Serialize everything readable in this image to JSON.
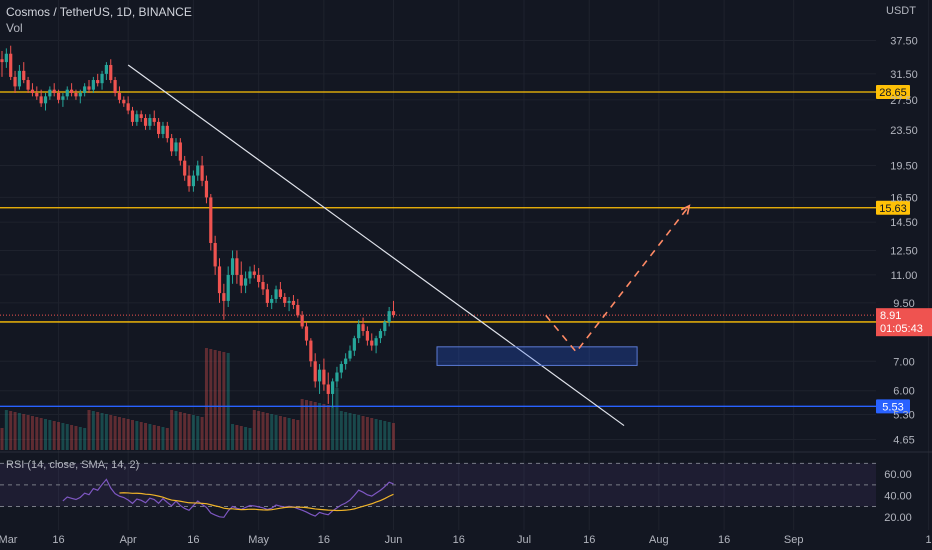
{
  "header": {
    "title": "Cosmos / TetherUS, 1D, BINANCE",
    "volume_label": "Vol",
    "currency": "USDT"
  },
  "rsi": {
    "label": "RSI (14, close, SMA, 14, 2)",
    "ticks": [
      "60.00",
      "40.00",
      "20.00"
    ]
  },
  "colors": {
    "background": "#131722",
    "up": "#26a69a",
    "down": "#ef5350",
    "level": "#ffc107",
    "support": "#2962ff",
    "rsi_line": "#7e57c2",
    "rsi_ma": "#f0b429"
  },
  "chart_data": {
    "type": "candlestick",
    "symbol": "Cosmos / TetherUS",
    "timeframe": "1D",
    "exchange": "BINANCE",
    "y_scale": "log",
    "ylim": [
      4.4,
      44
    ],
    "price_ticks": [
      "37.50",
      "31.50",
      "27.50",
      "23.50",
      "19.50",
      "16.50",
      "14.50",
      "12.50",
      "11.00",
      "9.50",
      "7.00",
      "6.00",
      "5.30",
      "4.65"
    ],
    "x_ticks": [
      "Mar",
      "16",
      "Apr",
      "16",
      "May",
      "16",
      "Jun",
      "16",
      "Jul",
      "16",
      "Aug",
      "16",
      "Sep",
      "1"
    ],
    "horizontal_levels": [
      {
        "value": 28.65,
        "label": "28.65",
        "color": "#ffc107"
      },
      {
        "value": 15.63,
        "label": "15.63",
        "color": "#ffc107"
      },
      {
        "value": 8.6,
        "label": "8.60",
        "color": "#ffc107"
      },
      {
        "value": 5.53,
        "label": "5.53",
        "color": "#2962ff"
      }
    ],
    "last_price": {
      "value": 8.91,
      "label": "8.91",
      "countdown": "01:05:43"
    },
    "drawings": {
      "trendline": {
        "from": [
          "Apr",
          33.0
        ],
        "to": [
          "Jul 24",
          5.0
        ]
      },
      "demand_zone": {
        "from": [
          "Jun 11",
          6.85
        ],
        "to": [
          "Jul 27",
          7.55
        ]
      },
      "projection": [
        [
          8.9,
          "Jul 6"
        ],
        [
          7.35,
          "Jul 13"
        ],
        [
          15.8,
          "Aug 8"
        ]
      ]
    },
    "candles": [
      [
        34.0,
        35.5,
        31.0,
        33.5
      ],
      [
        33.5,
        36.0,
        32.5,
        35.0
      ],
      [
        35.0,
        36.5,
        30.5,
        31.0
      ],
      [
        31.0,
        32.0,
        28.5,
        29.5
      ],
      [
        29.5,
        33.0,
        29.0,
        32.0
      ],
      [
        32.0,
        33.5,
        30.0,
        30.5
      ],
      [
        30.5,
        31.0,
        28.5,
        29.0
      ],
      [
        29.0,
        30.0,
        28.0,
        28.5
      ],
      [
        28.5,
        29.5,
        27.5,
        28.0
      ],
      [
        28.0,
        29.0,
        26.5,
        27.0
      ],
      [
        27.0,
        28.5,
        26.0,
        28.0
      ],
      [
        28.0,
        29.5,
        27.5,
        29.0
      ],
      [
        29.0,
        30.0,
        28.0,
        28.5
      ],
      [
        28.5,
        29.0,
        27.0,
        27.5
      ],
      [
        27.5,
        28.5,
        26.5,
        28.0
      ],
      [
        28.0,
        29.5,
        27.5,
        29.0
      ],
      [
        29.0,
        30.0,
        28.0,
        28.5
      ],
      [
        28.5,
        29.0,
        27.5,
        28.0
      ],
      [
        28.0,
        29.0,
        27.0,
        28.5
      ],
      [
        28.5,
        30.0,
        28.0,
        29.5
      ],
      [
        29.5,
        30.5,
        28.5,
        29.0
      ],
      [
        29.0,
        31.0,
        28.5,
        30.5
      ],
      [
        30.5,
        31.5,
        29.5,
        30.0
      ],
      [
        30.0,
        32.0,
        29.0,
        31.5
      ],
      [
        31.5,
        33.5,
        30.5,
        33.0
      ],
      [
        33.0,
        34.0,
        30.0,
        30.5
      ],
      [
        30.5,
        31.0,
        28.0,
        28.5
      ],
      [
        28.5,
        29.5,
        27.0,
        27.5
      ],
      [
        27.5,
        28.0,
        26.5,
        27.0
      ],
      [
        27.0,
        28.0,
        25.5,
        26.0
      ],
      [
        26.0,
        26.5,
        24.0,
        24.5
      ],
      [
        24.5,
        26.0,
        24.0,
        25.5
      ],
      [
        25.5,
        26.0,
        24.5,
        25.0
      ],
      [
        25.0,
        25.5,
        23.5,
        24.0
      ],
      [
        24.0,
        25.5,
        23.5,
        25.0
      ],
      [
        25.0,
        26.0,
        24.0,
        24.5
      ],
      [
        24.5,
        25.0,
        22.5,
        23.0
      ],
      [
        23.0,
        24.5,
        22.5,
        24.0
      ],
      [
        24.0,
        24.5,
        22.0,
        22.5
      ],
      [
        22.5,
        23.0,
        20.5,
        21.0
      ],
      [
        21.0,
        22.5,
        20.5,
        22.0
      ],
      [
        22.0,
        22.5,
        19.5,
        20.0
      ],
      [
        20.0,
        20.5,
        18.0,
        18.5
      ],
      [
        18.5,
        19.5,
        17.0,
        17.5
      ],
      [
        17.5,
        19.0,
        17.0,
        18.5
      ],
      [
        18.5,
        20.0,
        18.0,
        19.5
      ],
      [
        19.5,
        20.5,
        17.5,
        18.0
      ],
      [
        18.0,
        18.5,
        16.0,
        16.5
      ],
      [
        16.5,
        16.8,
        12.5,
        13.0
      ],
      [
        13.0,
        13.5,
        11.0,
        11.5
      ],
      [
        11.5,
        12.0,
        9.5,
        10.0
      ],
      [
        10.0,
        10.5,
        8.7,
        9.6
      ],
      [
        9.6,
        11.5,
        9.3,
        11.0
      ],
      [
        11.0,
        12.5,
        10.5,
        12.0
      ],
      [
        12.0,
        12.5,
        10.5,
        11.0
      ],
      [
        11.0,
        11.8,
        10.0,
        10.4
      ],
      [
        10.4,
        11.2,
        10.0,
        10.8
      ],
      [
        10.8,
        11.5,
        10.5,
        11.2
      ],
      [
        11.2,
        11.6,
        10.8,
        11.0
      ],
      [
        11.0,
        11.4,
        10.3,
        10.6
      ],
      [
        10.6,
        11.0,
        9.9,
        10.2
      ],
      [
        10.2,
        10.5,
        9.3,
        9.5
      ],
      [
        9.5,
        9.9,
        9.2,
        9.7
      ],
      [
        9.7,
        10.4,
        9.5,
        10.2
      ],
      [
        10.2,
        10.6,
        9.7,
        9.8
      ],
      [
        9.8,
        10.0,
        9.3,
        9.5
      ],
      [
        9.5,
        9.8,
        9.1,
        9.6
      ],
      [
        9.6,
        9.9,
        9.2,
        9.4
      ],
      [
        9.4,
        9.7,
        8.8,
        8.9
      ],
      [
        8.9,
        9.1,
        8.3,
        8.4
      ],
      [
        8.4,
        8.6,
        7.6,
        7.8
      ],
      [
        7.8,
        7.9,
        6.8,
        7.0
      ],
      [
        7.0,
        7.3,
        6.1,
        6.3
      ],
      [
        6.3,
        6.9,
        5.9,
        6.7
      ],
      [
        6.7,
        7.1,
        6.0,
        6.2
      ],
      [
        6.2,
        6.6,
        5.6,
        5.9
      ],
      [
        5.9,
        6.4,
        5.5,
        6.3
      ],
      [
        6.3,
        6.8,
        6.1,
        6.6
      ],
      [
        6.6,
        7.0,
        6.4,
        6.9
      ],
      [
        6.9,
        7.3,
        6.7,
        7.1
      ],
      [
        7.1,
        7.6,
        7.0,
        7.4
      ],
      [
        7.4,
        8.0,
        7.2,
        7.9
      ],
      [
        7.9,
        8.7,
        7.7,
        8.5
      ],
      [
        8.5,
        8.8,
        8.0,
        8.2
      ],
      [
        8.2,
        8.4,
        7.6,
        7.8
      ],
      [
        7.8,
        8.1,
        7.4,
        7.6
      ],
      [
        7.6,
        8.0,
        7.3,
        7.9
      ],
      [
        7.9,
        8.3,
        7.7,
        8.2
      ],
      [
        8.2,
        8.7,
        8.0,
        8.6
      ],
      [
        8.6,
        9.3,
        8.4,
        9.1
      ],
      [
        9.1,
        9.6,
        8.8,
        8.91
      ]
    ]
  }
}
